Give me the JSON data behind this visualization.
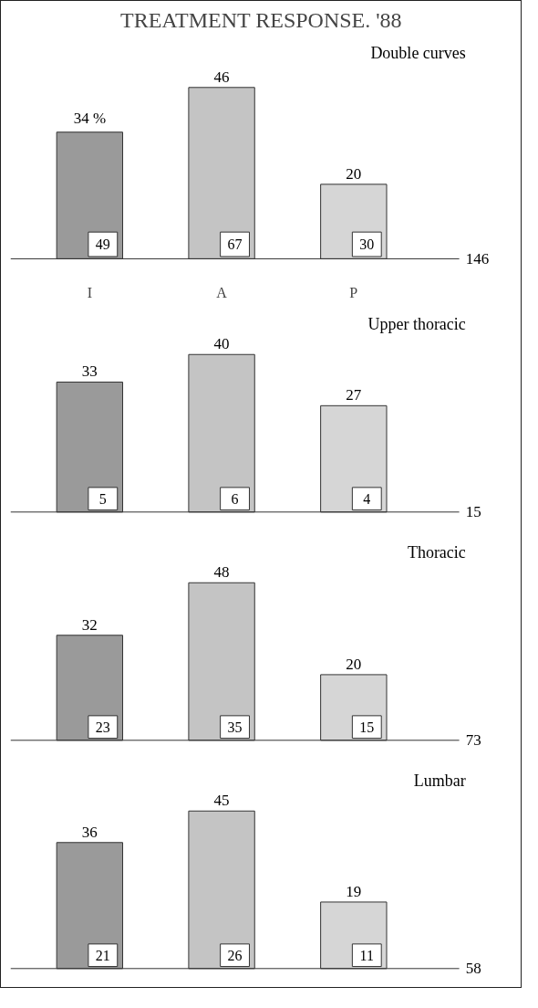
{
  "chart_data": [
    {
      "type": "bar",
      "title": "TREATMENT RESPONSE. '88",
      "subtitle": "Double curves",
      "categories": [
        "I",
        "A",
        "P"
      ],
      "values": [
        34,
        46,
        20
      ],
      "value_labels": [
        "34 %",
        "46",
        "20"
      ],
      "colors": [
        "#9a9a9a",
        "#c4c4c4",
        "#d6d6d6"
      ],
      "annotations": [
        "49",
        "67",
        "30",
        "146"
      ],
      "tick_labels": "x"
    },
    {
      "type": "bar",
      "subtitle": "Upper thoracic",
      "categories": [
        null,
        null,
        null
      ],
      "values": [
        33,
        40,
        27
      ],
      "value_labels": [
        "33",
        "40",
        "27"
      ],
      "colors": [
        "#9a9a9a",
        "#c4c4c4",
        "#d6d6d6"
      ],
      "annotations": [
        "5",
        "6",
        "4",
        "15"
      ],
      "tick_labels": false
    },
    {
      "type": "bar",
      "subtitle": "Thoracic",
      "categories": [
        null,
        null,
        null
      ],
      "values": [
        32,
        48,
        20
      ],
      "value_labels": [
        "32",
        "48",
        "20"
      ],
      "colors": [
        "#9a9a9a",
        "#c4c4c4",
        "#d6d6d6"
      ],
      "annotations": [
        "23",
        "35",
        "15",
        "73"
      ],
      "tick_labels": false
    },
    {
      "type": "bar",
      "subtitle": "Lumbar",
      "categories": [
        null,
        null,
        null
      ],
      "values": [
        36,
        45,
        19
      ],
      "value_labels": [
        "36",
        "45",
        "19"
      ],
      "colors": [
        "#9a9a9a",
        "#c4c4c4",
        "#d6d6d6"
      ],
      "annotations": [
        "21",
        "26",
        "11",
        "58"
      ],
      "tick_labels": false
    }
  ]
}
